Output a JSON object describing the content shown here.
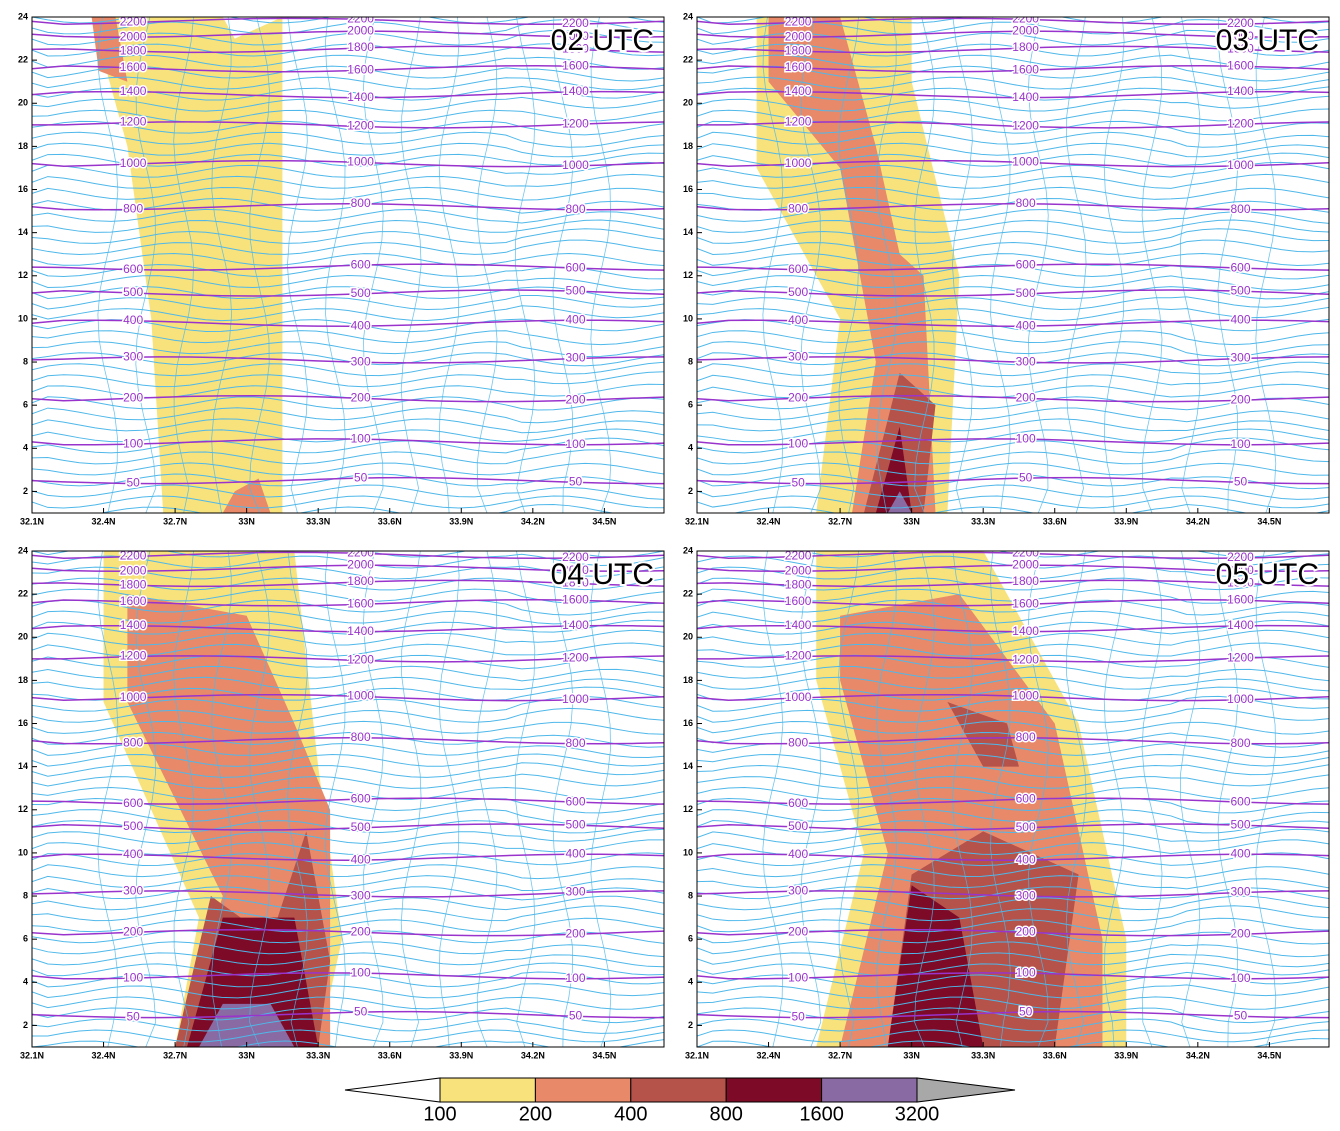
{
  "chart_data": [
    {
      "type": "contour",
      "title": "02 UTC",
      "xlim": [
        32.1,
        34.75
      ],
      "ylim": [
        1,
        24
      ],
      "xticks": [
        {
          "value": 32.1,
          "label": "32.1N"
        },
        {
          "value": 32.4,
          "label": "32.4N"
        },
        {
          "value": 32.7,
          "label": "32.7N"
        },
        {
          "value": 33.0,
          "label": "33N"
        },
        {
          "value": 33.3,
          "label": "33.3N"
        },
        {
          "value": 33.6,
          "label": "33.6N"
        },
        {
          "value": 33.9,
          "label": "33.9N"
        },
        {
          "value": 34.2,
          "label": "34.2N"
        },
        {
          "value": 34.5,
          "label": "34.5N"
        }
      ],
      "yticks": [
        2,
        4,
        6,
        8,
        10,
        12,
        14,
        16,
        18,
        20,
        22,
        24
      ],
      "contours": [
        {
          "value": 50,
          "y": 2.5
        },
        {
          "value": 100,
          "y": 4.3
        },
        {
          "value": 200,
          "y": 6.3
        },
        {
          "value": 300,
          "y": 8.1
        },
        {
          "value": 400,
          "y": 9.8
        },
        {
          "value": 500,
          "y": 11.2
        },
        {
          "value": 600,
          "y": 12.4
        },
        {
          "value": 800,
          "y": 15.2
        },
        {
          "value": 1000,
          "y": 17.2
        },
        {
          "value": 1200,
          "y": 19.0
        },
        {
          "value": 1400,
          "y": 20.4
        },
        {
          "value": 1600,
          "y": 21.6
        },
        {
          "value": 1800,
          "y": 22.5
        },
        {
          "value": 2000,
          "y": 23.2
        },
        {
          "value": 2200,
          "y": 23.8
        }
      ],
      "shading": [
        {
          "level": 100,
          "points": [
            [
              32.45,
              24
            ],
            [
              32.9,
              24
            ],
            [
              32.95,
              23
            ],
            [
              33.15,
              24
            ],
            [
              33.15,
              1
            ],
            [
              32.65,
              1
            ],
            [
              32.6,
              10
            ],
            [
              32.5,
              18
            ],
            [
              32.4,
              22
            ]
          ]
        },
        {
          "level": 200,
          "points": [
            [
              32.35,
              24
            ],
            [
              32.45,
              24
            ],
            [
              32.5,
              21
            ],
            [
              32.38,
              21.5
            ]
          ]
        },
        {
          "level": 200,
          "points": [
            [
              32.9,
              1
            ],
            [
              33.1,
              1
            ],
            [
              33.05,
              2.6
            ],
            [
              32.95,
              2
            ]
          ]
        }
      ]
    },
    {
      "type": "contour",
      "title": "03 UTC",
      "xlim": [
        32.1,
        34.75
      ],
      "ylim": [
        1,
        24
      ],
      "xticks": [
        {
          "value": 32.1,
          "label": "32.1N"
        },
        {
          "value": 32.4,
          "label": "32.4N"
        },
        {
          "value": 32.7,
          "label": "32.7N"
        },
        {
          "value": 33.0,
          "label": "33N"
        },
        {
          "value": 33.3,
          "label": "33.3N"
        },
        {
          "value": 33.6,
          "label": "33.6N"
        },
        {
          "value": 33.9,
          "label": "33.9N"
        },
        {
          "value": 34.2,
          "label": "34.2N"
        },
        {
          "value": 34.5,
          "label": "34.5N"
        }
      ],
      "yticks": [
        2,
        4,
        6,
        8,
        10,
        12,
        14,
        16,
        18,
        20,
        22,
        24
      ],
      "contours": [
        {
          "value": 50,
          "y": 2.5
        },
        {
          "value": 100,
          "y": 4.3
        },
        {
          "value": 200,
          "y": 6.3
        },
        {
          "value": 300,
          "y": 8.1
        },
        {
          "value": 400,
          "y": 9.8
        },
        {
          "value": 500,
          "y": 11.2
        },
        {
          "value": 600,
          "y": 12.4
        },
        {
          "value": 800,
          "y": 15.2
        },
        {
          "value": 1000,
          "y": 17.2
        },
        {
          "value": 1200,
          "y": 19.0
        },
        {
          "value": 1400,
          "y": 20.4
        },
        {
          "value": 1600,
          "y": 21.6
        },
        {
          "value": 1800,
          "y": 22.5
        },
        {
          "value": 2000,
          "y": 23.2
        },
        {
          "value": 2200,
          "y": 23.8
        }
      ],
      "shading": [
        {
          "level": 100,
          "points": [
            [
              32.35,
              24
            ],
            [
              33.0,
              24
            ],
            [
              33.0,
              21
            ],
            [
              33.2,
              12
            ],
            [
              33.15,
              1
            ],
            [
              32.6,
              1
            ],
            [
              32.7,
              10
            ],
            [
              32.35,
              17
            ]
          ]
        },
        {
          "level": 200,
          "points": [
            [
              32.4,
              24
            ],
            [
              32.7,
              24
            ],
            [
              32.85,
              18
            ],
            [
              32.95,
              13
            ],
            [
              33.05,
              12
            ],
            [
              33.1,
              1
            ],
            [
              32.75,
              1
            ],
            [
              32.85,
              8
            ],
            [
              32.7,
              17
            ],
            [
              32.4,
              21
            ]
          ]
        },
        {
          "level": 400,
          "points": [
            [
              32.8,
              1
            ],
            [
              32.95,
              7.5
            ],
            [
              33.1,
              6
            ],
            [
              33.05,
              1
            ]
          ]
        },
        {
          "level": 800,
          "points": [
            [
              32.85,
              1
            ],
            [
              32.95,
              5
            ],
            [
              33.0,
              1
            ]
          ]
        },
        {
          "level": 1600,
          "points": [
            [
              32.9,
              1
            ],
            [
              32.95,
              2
            ],
            [
              33.0,
              1
            ]
          ]
        }
      ]
    },
    {
      "type": "contour",
      "title": "04 UTC",
      "xlim": [
        32.1,
        34.75
      ],
      "ylim": [
        1,
        24
      ],
      "xticks": [
        {
          "value": 32.1,
          "label": "32.1N"
        },
        {
          "value": 32.4,
          "label": "32.4N"
        },
        {
          "value": 32.7,
          "label": "32.7N"
        },
        {
          "value": 33.0,
          "label": "33N"
        },
        {
          "value": 33.3,
          "label": "33.3N"
        },
        {
          "value": 33.6,
          "label": "33.6N"
        },
        {
          "value": 33.9,
          "label": "33.9N"
        },
        {
          "value": 34.2,
          "label": "34.2N"
        },
        {
          "value": 34.5,
          "label": "34.5N"
        }
      ],
      "yticks": [
        2,
        4,
        6,
        8,
        10,
        12,
        14,
        16,
        18,
        20,
        22,
        24
      ],
      "contours": [
        {
          "value": 50,
          "y": 2.5
        },
        {
          "value": 100,
          "y": 4.3
        },
        {
          "value": 200,
          "y": 6.3
        },
        {
          "value": 300,
          "y": 8.1
        },
        {
          "value": 400,
          "y": 9.8
        },
        {
          "value": 500,
          "y": 11.2
        },
        {
          "value": 600,
          "y": 12.4
        },
        {
          "value": 800,
          "y": 15.2
        },
        {
          "value": 1000,
          "y": 17.2
        },
        {
          "value": 1200,
          "y": 19.0
        },
        {
          "value": 1400,
          "y": 20.4
        },
        {
          "value": 1600,
          "y": 21.6
        },
        {
          "value": 1800,
          "y": 22.5
        },
        {
          "value": 2000,
          "y": 23.2
        },
        {
          "value": 2200,
          "y": 23.8
        }
      ],
      "shading": [
        {
          "level": 100,
          "points": [
            [
              32.4,
              24
            ],
            [
              33.2,
              24
            ],
            [
              33.3,
              14
            ],
            [
              33.4,
              6
            ],
            [
              33.3,
              1
            ],
            [
              32.7,
              1
            ],
            [
              32.8,
              7
            ],
            [
              32.4,
              17
            ]
          ]
        },
        {
          "level": 200,
          "points": [
            [
              32.5,
              22
            ],
            [
              33.0,
              21
            ],
            [
              33.2,
              16
            ],
            [
              33.35,
              12
            ],
            [
              33.35,
              1
            ],
            [
              32.7,
              1
            ],
            [
              32.9,
              8
            ],
            [
              32.5,
              17
            ]
          ]
        },
        {
          "level": 400,
          "points": [
            [
              32.7,
              1
            ],
            [
              32.85,
              8
            ],
            [
              33.1,
              6
            ],
            [
              33.25,
              11
            ],
            [
              33.35,
              5
            ],
            [
              33.3,
              1
            ]
          ]
        },
        {
          "level": 800,
          "points": [
            [
              32.75,
              1
            ],
            [
              32.9,
              7
            ],
            [
              33.2,
              7
            ],
            [
              33.3,
              1
            ]
          ]
        },
        {
          "level": 1600,
          "points": [
            [
              32.8,
              1
            ],
            [
              32.9,
              3
            ],
            [
              33.1,
              3
            ],
            [
              33.2,
              1
            ]
          ]
        }
      ]
    },
    {
      "type": "contour",
      "title": "05 UTC",
      "xlim": [
        32.1,
        34.75
      ],
      "ylim": [
        1,
        24
      ],
      "xticks": [
        {
          "value": 32.1,
          "label": "32.1N"
        },
        {
          "value": 32.4,
          "label": "32.4N"
        },
        {
          "value": 32.7,
          "label": "32.7N"
        },
        {
          "value": 33.0,
          "label": "33N"
        },
        {
          "value": 33.3,
          "label": "33.3N"
        },
        {
          "value": 33.6,
          "label": "33.6N"
        },
        {
          "value": 33.9,
          "label": "33.9N"
        },
        {
          "value": 34.2,
          "label": "34.2N"
        },
        {
          "value": 34.5,
          "label": "34.5N"
        }
      ],
      "yticks": [
        2,
        4,
        6,
        8,
        10,
        12,
        14,
        16,
        18,
        20,
        22,
        24
      ],
      "contours": [
        {
          "value": 50,
          "y": 2.5
        },
        {
          "value": 100,
          "y": 4.3
        },
        {
          "value": 200,
          "y": 6.3
        },
        {
          "value": 300,
          "y": 8.1
        },
        {
          "value": 400,
          "y": 9.8
        },
        {
          "value": 500,
          "y": 11.2
        },
        {
          "value": 600,
          "y": 12.4
        },
        {
          "value": 800,
          "y": 15.2
        },
        {
          "value": 1000,
          "y": 17.2
        },
        {
          "value": 1200,
          "y": 19.0
        },
        {
          "value": 1400,
          "y": 20.4
        },
        {
          "value": 1600,
          "y": 21.6
        },
        {
          "value": 1800,
          "y": 22.5
        },
        {
          "value": 2000,
          "y": 23.2
        },
        {
          "value": 2200,
          "y": 23.8
        }
      ],
      "shading": [
        {
          "level": 100,
          "points": [
            [
              32.6,
              24
            ],
            [
              33.3,
              24
            ],
            [
              33.7,
              16
            ],
            [
              33.9,
              6
            ],
            [
              33.9,
              1
            ],
            [
              32.6,
              1
            ],
            [
              32.8,
              10
            ],
            [
              32.6,
              18
            ]
          ]
        },
        {
          "level": 200,
          "points": [
            [
              32.7,
              21
            ],
            [
              33.2,
              22
            ],
            [
              33.6,
              16
            ],
            [
              33.8,
              6
            ],
            [
              33.8,
              1
            ],
            [
              32.7,
              1
            ],
            [
              32.9,
              10
            ],
            [
              32.7,
              18
            ]
          ]
        },
        {
          "level": 400,
          "points": [
            [
              32.9,
              1
            ],
            [
              33.0,
              9
            ],
            [
              33.3,
              11
            ],
            [
              33.7,
              9
            ],
            [
              33.6,
              1
            ]
          ]
        },
        {
          "level": 400,
          "points": [
            [
              33.15,
              17
            ],
            [
              33.4,
              16
            ],
            [
              33.45,
              14
            ],
            [
              33.3,
              14
            ]
          ]
        },
        {
          "level": 800,
          "points": [
            [
              32.9,
              1
            ],
            [
              33.0,
              8.5
            ],
            [
              33.2,
              7
            ],
            [
              33.3,
              1
            ]
          ]
        }
      ]
    }
  ],
  "colorbar": {
    "levels": [
      100,
      200,
      400,
      800,
      1600,
      3200
    ],
    "colors": [
      "#ffffff",
      "#f7e27c",
      "#e8896a",
      "#b5524a",
      "#7d0a26",
      "#8a6aa2",
      "#a8a8a8"
    ]
  },
  "contour_color": "#9933cc",
  "streamline_color": "#4fb8ea"
}
